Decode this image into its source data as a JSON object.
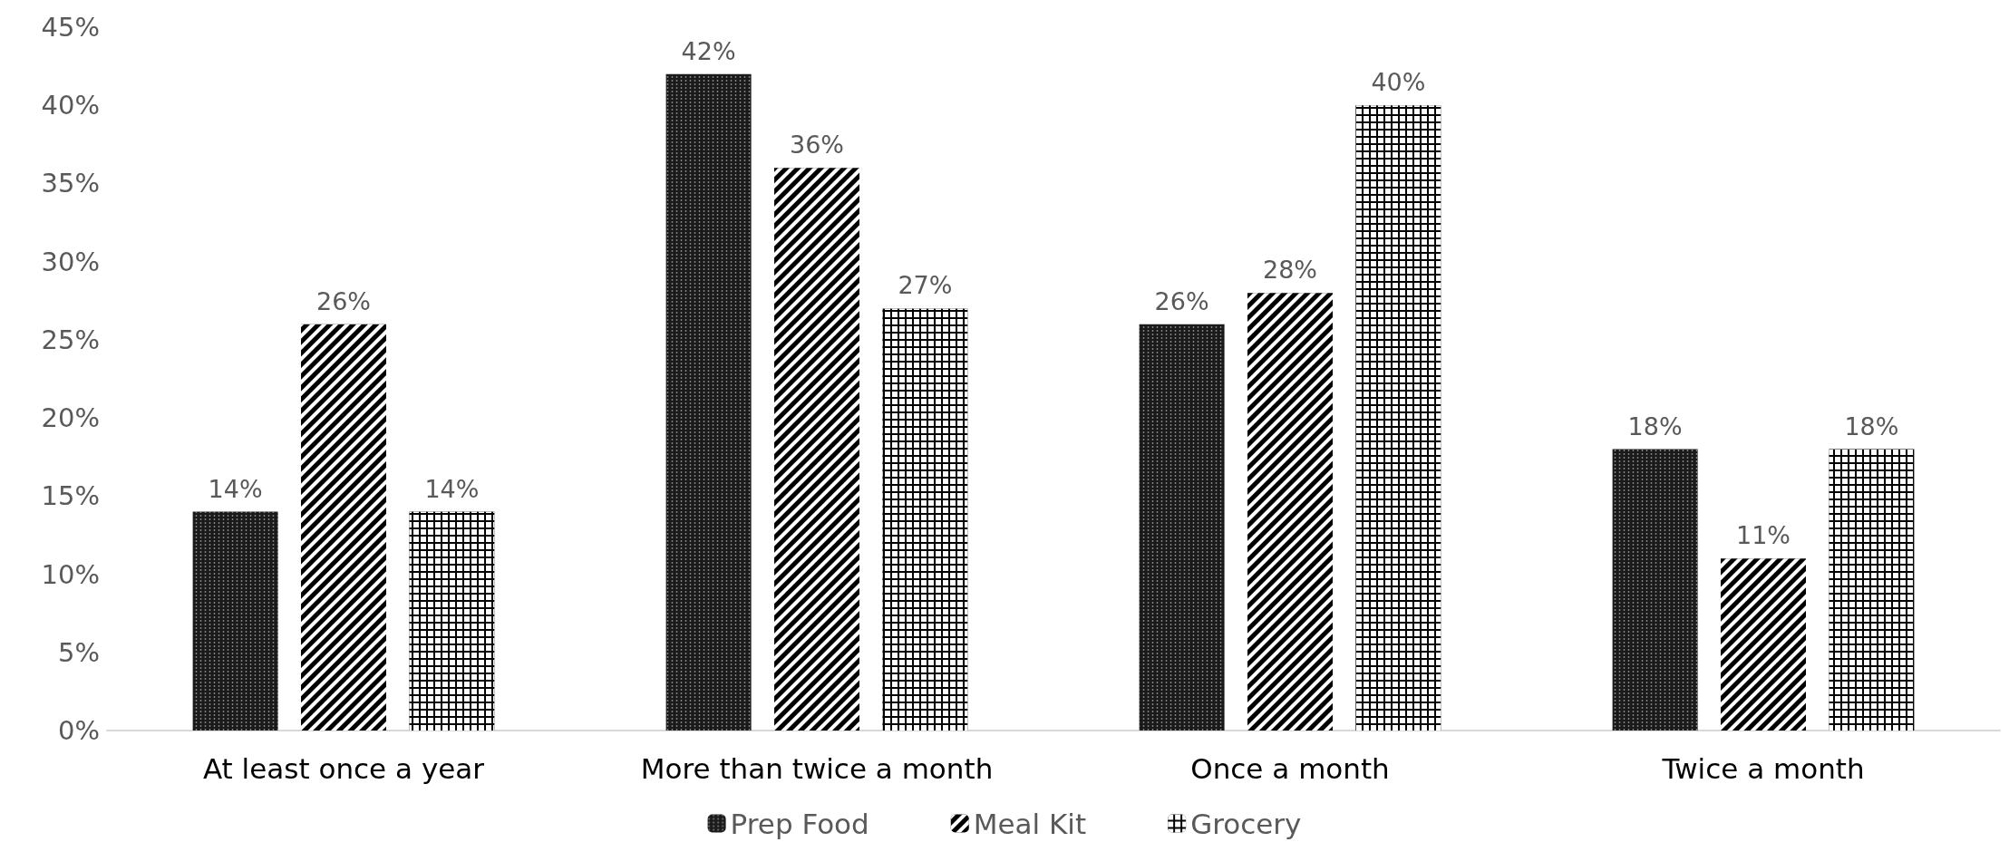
{
  "chart_data": {
    "type": "bar",
    "categories": [
      "At least once a year",
      "More than twice a month",
      "Once a month",
      "Twice a month"
    ],
    "series": [
      {
        "name": "Prep Food",
        "color": "#1a1a1a",
        "values": [
          14,
          42,
          26,
          18
        ],
        "value_labels": [
          "14%",
          "42%",
          "26%",
          "18%"
        ]
      },
      {
        "name": "Meal Kit",
        "color": "#000000",
        "values": [
          26,
          36,
          28,
          11
        ],
        "value_labels": [
          "26%",
          "36%",
          "28%",
          "11%"
        ]
      },
      {
        "name": "Grocery",
        "color": "#000000",
        "values": [
          14,
          27,
          40,
          18
        ],
        "value_labels": [
          "14%",
          "27%",
          "40%",
          "18%"
        ]
      }
    ],
    "ylim": [
      0,
      45
    ],
    "yticks": [
      {
        "value": 0,
        "label": "0%"
      },
      {
        "value": 5,
        "label": "5%"
      },
      {
        "value": 10,
        "label": "10%"
      },
      {
        "value": 15,
        "label": "15%"
      },
      {
        "value": 20,
        "label": "20%"
      },
      {
        "value": 25,
        "label": "25%"
      },
      {
        "value": 30,
        "label": "30%"
      },
      {
        "value": 35,
        "label": "35%"
      },
      {
        "value": 40,
        "label": "40%"
      },
      {
        "value": 45,
        "label": "45%"
      }
    ],
    "grid": false,
    "legend": "bottom"
  }
}
